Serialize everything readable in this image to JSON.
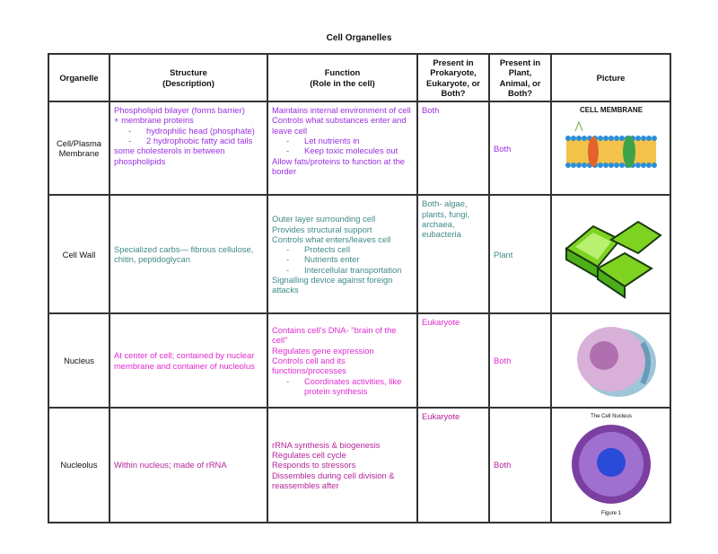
{
  "title": "Cell Organelles",
  "headers": [
    "Organelle",
    "Structure\n(Description)",
    "Function\n(Role in the cell)",
    "Present in Prokaryote, Eukaryote, or Both?",
    "Present in Plant, Animal, or Both?",
    "Picture"
  ],
  "rows": [
    {
      "organelle": "Cell/Plasma Membrane",
      "structure": {
        "lines": [
          "Phospholipid bilayer (forms barrier)",
          "+ membrane proteins"
        ],
        "bullets": [
          "hydrophilic head (phosphate)",
          "2 hydrophobic fatty acid tails"
        ],
        "after": [
          "some cholesterols in between phospholipids"
        ]
      },
      "function": {
        "lines": [
          "Maintains internal environment of cell",
          "Controls what substances enter and leave cell"
        ],
        "bullets": [
          "Let nutrients in",
          "Keep toxic molecules out"
        ],
        "after": [
          "Allow fats/proteins to function at the border"
        ]
      },
      "prokaryote": "Both",
      "plant": "Both",
      "picture_label": "CELL MEMBRANE",
      "color": "#9a2fe0"
    },
    {
      "organelle": "Cell Wall",
      "structure": {
        "lines": [
          "Specialized carbs— fibrous cellulose, chitin, peptidoglycan"
        ],
        "bullets": [],
        "after": []
      },
      "function": {
        "lines": [
          "Outer layer surrounding cell",
          "Provides structural support",
          "Controls what enters/leaves cell"
        ],
        "bullets": [
          "Protects cell",
          "Nutrients enter",
          "Intercellular transportation"
        ],
        "after": [
          "Signalling device against foreign attacks"
        ]
      },
      "prokaryote": "Both- algae, plants, fungi, archaea, eubacteria",
      "plant": "Plant",
      "picture_label": "",
      "color": "#3f8a86"
    },
    {
      "organelle": "Nucleus",
      "structure": {
        "lines": [
          "At center of cell; contained by nuclear membrane and container of nucleolus"
        ],
        "bullets": [],
        "after": []
      },
      "function": {
        "lines": [
          "Contains cell's DNA- \"brain of the cell\"",
          "Regulates gene expression",
          "Controls cell and its functions/processes"
        ],
        "bullets": [
          "Coordinates activities, like protein synthesis"
        ],
        "after": []
      },
      "prokaryote": "Eukaryote",
      "plant": "Both",
      "picture_label": "",
      "color": "#e02ad0"
    },
    {
      "organelle": "Nucleolus",
      "structure": {
        "lines": [
          "Within nucleus; made of rRNA"
        ],
        "bullets": [],
        "after": []
      },
      "function": {
        "lines": [
          "rRNA synthesis & biogenesis",
          "Regulates cell cycle",
          "Responds to stressors",
          "Dissembles during cell division & reassembles after"
        ],
        "bullets": [],
        "after": []
      },
      "prokaryote": "Eukaryote",
      "plant": "Both",
      "picture_label": "The Cell Nucleus",
      "picture_caption": "Figure 1",
      "color": "#b5249a"
    }
  ]
}
